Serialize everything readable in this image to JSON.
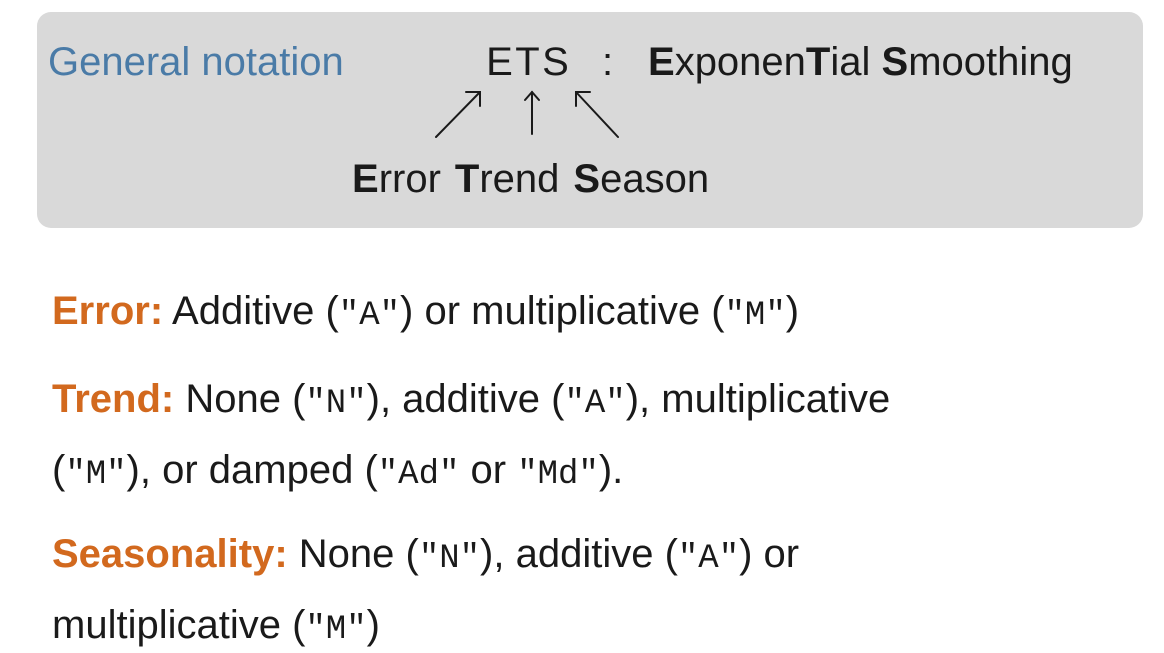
{
  "header": {
    "general_notation": "General notation",
    "ets_letters": [
      "E",
      "T",
      "S"
    ],
    "colon": ":",
    "full_name_parts": [
      {
        "bold": "E",
        "rest": "xponen"
      },
      {
        "bold": "T",
        "rest": "ial "
      },
      {
        "bold": "S",
        "rest": "moothing"
      }
    ],
    "labels": [
      {
        "bold": "E",
        "rest": "rror"
      },
      {
        "bold": "T",
        "rest": "rend"
      },
      {
        "bold": "S",
        "rest": "eason"
      }
    ]
  },
  "items": [
    {
      "key": "Error:",
      "line1": [
        {
          "t": "text",
          "v": " Additive ("
        },
        {
          "t": "code",
          "v": "\"A\""
        },
        {
          "t": "text",
          "v": ") or multiplicative ("
        },
        {
          "t": "code",
          "v": "\"M\""
        },
        {
          "t": "text",
          "v": ")"
        }
      ],
      "line2": []
    },
    {
      "key": "Trend:",
      "line1": [
        {
          "t": "text",
          "v": " None ("
        },
        {
          "t": "code",
          "v": "\"N\""
        },
        {
          "t": "text",
          "v": "), additive ("
        },
        {
          "t": "code",
          "v": "\"A\""
        },
        {
          "t": "text",
          "v": "), multiplicative"
        }
      ],
      "line2": [
        {
          "t": "text",
          "v": "("
        },
        {
          "t": "code",
          "v": "\"M\""
        },
        {
          "t": "text",
          "v": "), or damped ("
        },
        {
          "t": "code",
          "v": "\"Ad\""
        },
        {
          "t": "text",
          "v": " or "
        },
        {
          "t": "code",
          "v": "\"Md\""
        },
        {
          "t": "text",
          "v": ")."
        }
      ]
    },
    {
      "key": "Seasonality:",
      "line1": [
        {
          "t": "text",
          "v": " None ("
        },
        {
          "t": "code",
          "v": "\"N\""
        },
        {
          "t": "text",
          "v": "), additive ("
        },
        {
          "t": "code",
          "v": "\"A\""
        },
        {
          "t": "text",
          "v": ") or"
        }
      ],
      "line2": [
        {
          "t": "text",
          "v": "multiplicative ("
        },
        {
          "t": "code",
          "v": "\"M\""
        },
        {
          "t": "text",
          "v": ")"
        }
      ]
    }
  ]
}
